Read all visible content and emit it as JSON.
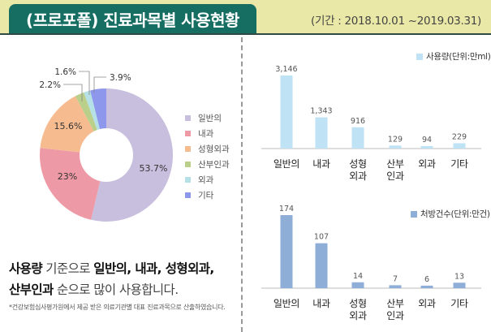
{
  "header": {
    "title": "(프로포폴) 진료과목별 사용현황",
    "period": "(기간 : 2018.10.01 ~2019.03.31)"
  },
  "colors": {
    "header_bg": "#e9e8a6",
    "title_bg": "#166d62",
    "usage_bar": "#bfe2f5",
    "rx_bar": "#8eaed8"
  },
  "chart_data": [
    {
      "type": "pie",
      "title": "",
      "donut": true,
      "legend_position": "right",
      "categories": [
        "일반의",
        "내과",
        "성형외과",
        "산부인과",
        "외과",
        "기타"
      ],
      "values": [
        53.7,
        23,
        15.6,
        2.2,
        1.6,
        3.9
      ],
      "labels": [
        "53.7%",
        "23%",
        "15.6%",
        "2.2%",
        "1.6%",
        "3.9%"
      ],
      "colors": [
        "#c7bfdd",
        "#ee9aa6",
        "#f7bb90",
        "#b9cf8a",
        "#b5e0e6",
        "#8d97ec"
      ]
    },
    {
      "type": "bar",
      "legend": "사용량(단위:만ml)",
      "legend_position": "top-right",
      "categories": [
        "일반의",
        "내과",
        "성형외과",
        "산부인과",
        "외과",
        "기타"
      ],
      "category_lines": [
        [
          "일반의"
        ],
        [
          "내과"
        ],
        [
          "성형",
          "외과"
        ],
        [
          "산부",
          "인과"
        ],
        [
          "외과"
        ],
        [
          "기타"
        ]
      ],
      "values": [
        3146,
        1343,
        916,
        129,
        94,
        229
      ],
      "value_labels": [
        "3,146",
        "1,343",
        "916",
        "129",
        "94",
        "229"
      ],
      "ylim": [
        0,
        3146
      ],
      "grid": false
    },
    {
      "type": "bar",
      "legend": "처방건수(단위:만건)",
      "legend_position": "top-right",
      "categories": [
        "일반의",
        "내과",
        "성형외과",
        "산부인과",
        "외과",
        "기타"
      ],
      "category_lines": [
        [
          "일반의"
        ],
        [
          "내과"
        ],
        [
          "성형",
          "외과"
        ],
        [
          "산부",
          "인과"
        ],
        [
          "외과"
        ],
        [
          "기타"
        ]
      ],
      "values": [
        174,
        107,
        14,
        7,
        6,
        13
      ],
      "value_labels": [
        "174",
        "107",
        "14",
        "7",
        "6",
        "13"
      ],
      "ylim": [
        0,
        174
      ],
      "grid": false
    }
  ],
  "summary": {
    "line1_a": "사용량",
    "line1_b": " 기준으로 ",
    "line1_c": "일반의, 내과, 성형외과,",
    "line2_a": "산부인과",
    "line2_b": " 순으로 많이 사용합니다."
  },
  "note": "*건강보험심사평가원에서 제공 받은 의료기관별 대표 진료과목으로 산출하였습니다."
}
